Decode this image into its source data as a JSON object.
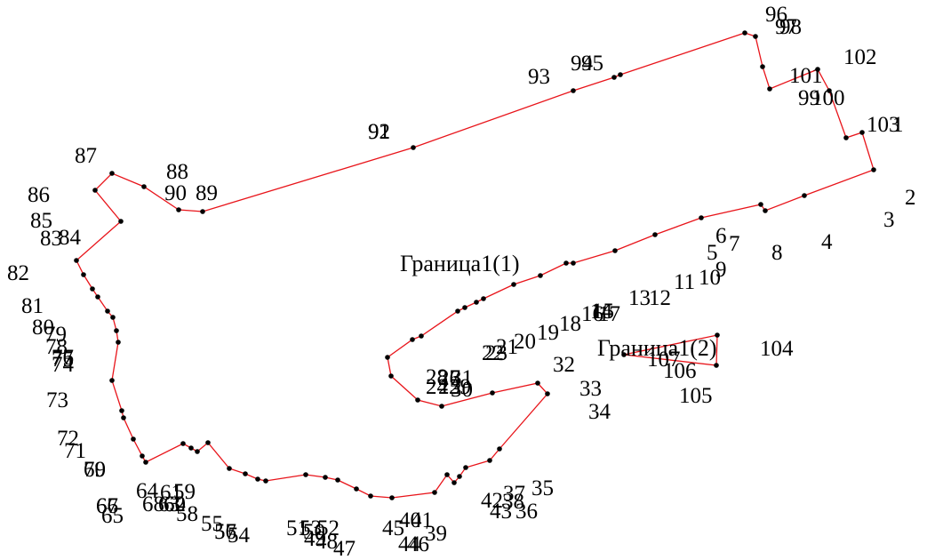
{
  "diagram": {
    "line_color": "#e8141a",
    "point_color": "#000000",
    "boundary_labels": [
      "Граница1(1)",
      "Граница1(2)"
    ],
    "point_labels": [
      "1",
      "2",
      "3",
      "4",
      "5",
      "6",
      "7",
      "8",
      "9",
      "10",
      "11",
      "12",
      "13",
      "14",
      "15",
      "16",
      "17",
      "18",
      "19",
      "20",
      "21",
      "22",
      "23",
      "24",
      "25",
      "26",
      "27",
      "28",
      "29",
      "30",
      "31",
      "32",
      "33",
      "34",
      "35",
      "36",
      "37",
      "38",
      "39",
      "40",
      "41",
      "42",
      "43",
      "44",
      "45",
      "46",
      "47",
      "48",
      "49",
      "50",
      "51",
      "52",
      "53",
      "54",
      "55",
      "56",
      "57",
      "58",
      "59",
      "60",
      "61",
      "62",
      "63",
      "64",
      "65",
      "66",
      "67",
      "68",
      "69",
      "70",
      "71",
      "72",
      "73",
      "74",
      "75",
      "76",
      "77",
      "78",
      "79",
      "80",
      "81",
      "82",
      "83",
      "84",
      "85",
      "86",
      "87",
      "88",
      "89",
      "90",
      "91",
      "92",
      "93",
      "94",
      "95",
      "96",
      "97",
      "98",
      "99",
      "100",
      "101",
      "102",
      "103",
      "104",
      "105",
      "106",
      "107"
    ]
  }
}
